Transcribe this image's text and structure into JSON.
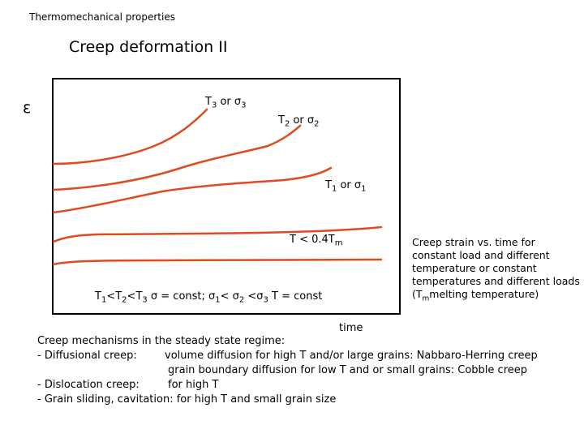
{
  "header": "Thermomechanical properties",
  "title": "Creep deformation II",
  "axis": {
    "ylabel": "ε",
    "xlabel": "time"
  },
  "curves": {
    "color": "#e04a1f",
    "labels": [
      {
        "base": "T",
        "sub": "3",
        "mid": " or ",
        "sym": "σ",
        "sub2": "3"
      },
      {
        "base": "T",
        "sub": "2",
        "mid": " or ",
        "sym": "σ",
        "sub2": "2"
      },
      {
        "base": "T",
        "sub": "1",
        "mid": " or ",
        "sym": "σ",
        "sub2": "1"
      },
      {
        "base": "T < 0.4T",
        "sub": "m",
        "mid": "",
        "sym": "",
        "sub2": ""
      }
    ]
  },
  "relation": {
    "p1": "T",
    "s1": "1",
    "p2": "<T",
    "s2": "2",
    "p3": "<T",
    "s3": "3",
    "p4": " σ = const; σ",
    "s4": "1",
    "p5": "< σ",
    "s5": "2",
    "p6": " <σ",
    "s6": "3",
    "p7": " T = const"
  },
  "note": {
    "line1": "Creep strain vs. time for constant load and different temperature or constant temperatures and different loads (T",
    "sub": "m",
    "line2": "melting temperature)"
  },
  "mechanisms": {
    "heading": "Creep mechanisms in the steady state regime:",
    "diffusional_label": "- Diffusional creep:",
    "diffusional_1": "volume diffusion for high T and/or large grains: Nabbaro-Herring creep",
    "diffusional_2": "grain boundary diffusion for low T and or small grains: Cobble creep",
    "dislocation_label": "- Dislocation creep:",
    "dislocation_1": "for high T",
    "sliding": "- Grain sliding, cavitation: for high T and small grain size"
  }
}
